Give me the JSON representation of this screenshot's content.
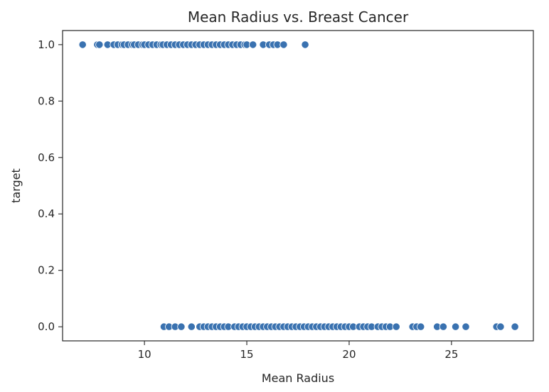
{
  "chart_data": {
    "type": "scatter",
    "title": "Mean Radius vs. Breast Cancer",
    "xlabel": "Mean Radius",
    "ylabel": "target",
    "xlim": [
      6.0,
      29.0
    ],
    "ylim": [
      -0.05,
      1.05
    ],
    "xticks": [
      10,
      15,
      20,
      25
    ],
    "yticks": [
      0.0,
      0.2,
      0.4,
      0.6,
      0.8,
      1.0
    ],
    "xtick_labels": [
      "10",
      "15",
      "20",
      "25"
    ],
    "ytick_labels": [
      "0.0",
      "0.2",
      "0.4",
      "0.6",
      "0.8",
      "1.0"
    ],
    "grid": false,
    "marker_color": "#3a72b0",
    "series": [
      {
        "points": [
          [
            6.98,
            1
          ],
          [
            7.7,
            1
          ],
          [
            7.8,
            1
          ],
          [
            8.2,
            1
          ],
          [
            8.5,
            1
          ],
          [
            8.7,
            1
          ],
          [
            8.9,
            1
          ],
          [
            9.0,
            1
          ],
          [
            9.2,
            1
          ],
          [
            9.4,
            1
          ],
          [
            9.5,
            1
          ],
          [
            9.7,
            1
          ],
          [
            9.9,
            1
          ],
          [
            10.0,
            1
          ],
          [
            10.2,
            1
          ],
          [
            10.4,
            1
          ],
          [
            10.6,
            1
          ],
          [
            10.8,
            1
          ],
          [
            10.9,
            1
          ],
          [
            11.1,
            1
          ],
          [
            11.3,
            1
          ],
          [
            11.5,
            1
          ],
          [
            11.7,
            1
          ],
          [
            11.9,
            1
          ],
          [
            12.1,
            1
          ],
          [
            12.3,
            1
          ],
          [
            12.5,
            1
          ],
          [
            12.7,
            1
          ],
          [
            12.9,
            1
          ],
          [
            13.1,
            1
          ],
          [
            13.3,
            1
          ],
          [
            13.5,
            1
          ],
          [
            13.7,
            1
          ],
          [
            13.9,
            1
          ],
          [
            14.1,
            1
          ],
          [
            14.3,
            1
          ],
          [
            14.5,
            1
          ],
          [
            14.7,
            1
          ],
          [
            14.9,
            1
          ],
          [
            15.0,
            1
          ],
          [
            15.3,
            1
          ],
          [
            15.8,
            1
          ],
          [
            16.1,
            1
          ],
          [
            16.3,
            1
          ],
          [
            16.5,
            1
          ],
          [
            16.8,
            1
          ],
          [
            17.85,
            1
          ],
          [
            10.95,
            0
          ],
          [
            11.2,
            0
          ],
          [
            11.5,
            0
          ],
          [
            11.8,
            0
          ],
          [
            12.3,
            0
          ],
          [
            12.7,
            0
          ],
          [
            12.9,
            0
          ],
          [
            13.1,
            0
          ],
          [
            13.3,
            0
          ],
          [
            13.5,
            0
          ],
          [
            13.7,
            0
          ],
          [
            13.9,
            0
          ],
          [
            14.1,
            0
          ],
          [
            14.4,
            0
          ],
          [
            14.6,
            0
          ],
          [
            14.8,
            0
          ],
          [
            15.0,
            0
          ],
          [
            15.2,
            0
          ],
          [
            15.4,
            0
          ],
          [
            15.6,
            0
          ],
          [
            15.8,
            0
          ],
          [
            16.0,
            0
          ],
          [
            16.2,
            0
          ],
          [
            16.4,
            0
          ],
          [
            16.6,
            0
          ],
          [
            16.8,
            0
          ],
          [
            17.0,
            0
          ],
          [
            17.2,
            0
          ],
          [
            17.4,
            0
          ],
          [
            17.6,
            0
          ],
          [
            17.8,
            0
          ],
          [
            18.0,
            0
          ],
          [
            18.2,
            0
          ],
          [
            18.4,
            0
          ],
          [
            18.6,
            0
          ],
          [
            18.8,
            0
          ],
          [
            19.0,
            0
          ],
          [
            19.2,
            0
          ],
          [
            19.4,
            0
          ],
          [
            19.6,
            0
          ],
          [
            19.8,
            0
          ],
          [
            20.0,
            0
          ],
          [
            20.2,
            0
          ],
          [
            20.5,
            0
          ],
          [
            20.7,
            0
          ],
          [
            20.9,
            0
          ],
          [
            21.1,
            0
          ],
          [
            21.4,
            0
          ],
          [
            21.6,
            0
          ],
          [
            21.8,
            0
          ],
          [
            22.0,
            0
          ],
          [
            22.3,
            0
          ],
          [
            23.1,
            0
          ],
          [
            23.3,
            0
          ],
          [
            23.5,
            0
          ],
          [
            24.3,
            0
          ],
          [
            24.6,
            0
          ],
          [
            25.2,
            0
          ],
          [
            25.7,
            0
          ],
          [
            27.2,
            0
          ],
          [
            27.4,
            0
          ],
          [
            28.1,
            0
          ]
        ]
      }
    ]
  }
}
